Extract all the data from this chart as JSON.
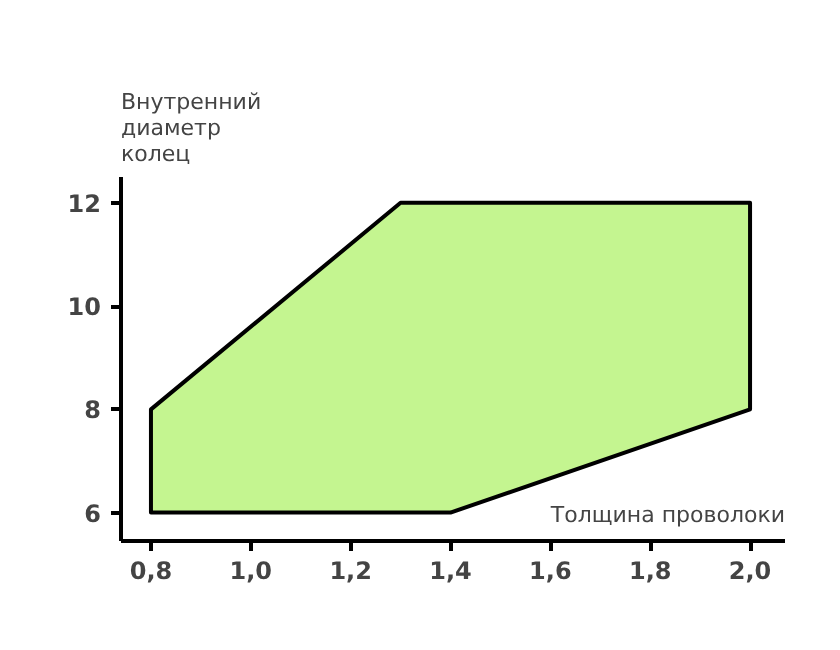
{
  "chart_data": {
    "type": "area",
    "xlabel": "Толщина проволоки",
    "ylabel": "Внутренний диаметр колец",
    "series": [
      {
        "color": "#c4f590",
        "x": [
          0.8,
          0.8,
          1.3,
          2.0,
          2.0,
          1.4
        ],
        "values": [
          6,
          8,
          12,
          12,
          8,
          6
        ]
      }
    ],
    "xlim": [
      0.74,
      2.07
    ],
    "ylim": [
      5.45,
      12.5
    ],
    "xticks": [
      {
        "value": 0.8,
        "label": "0,8"
      },
      {
        "value": 1.0,
        "label": "1,0"
      },
      {
        "value": 1.2,
        "label": "1,2"
      },
      {
        "value": 1.4,
        "label": "1,4"
      },
      {
        "value": 1.6,
        "label": "1,6"
      },
      {
        "value": 1.8,
        "label": "1,8"
      },
      {
        "value": 2.0,
        "label": "2,0"
      }
    ],
    "yticks": [
      6,
      8,
      10,
      12
    ],
    "grid": false
  }
}
